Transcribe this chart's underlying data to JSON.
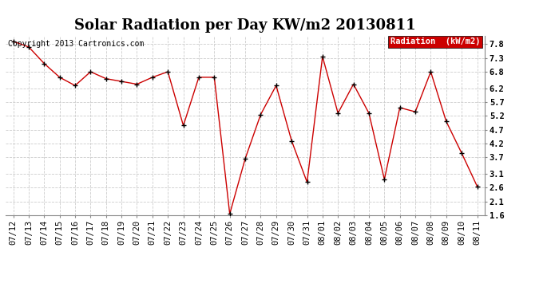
{
  "title": "Solar Radiation per Day KW/m2 20130811",
  "copyright": "Copyright 2013 Cartronics.com",
  "legend_label": "Radiation  (kW/m2)",
  "dates": [
    "07/12",
    "07/13",
    "07/14",
    "07/15",
    "07/16",
    "07/17",
    "07/18",
    "07/19",
    "07/20",
    "07/21",
    "07/22",
    "07/23",
    "07/24",
    "07/25",
    "07/26",
    "07/27",
    "07/28",
    "07/29",
    "07/30",
    "07/31",
    "08/01",
    "08/02",
    "08/03",
    "08/04",
    "08/05",
    "08/06",
    "08/07",
    "08/08",
    "08/09",
    "08/10",
    "08/11"
  ],
  "values": [
    7.9,
    7.7,
    7.1,
    6.6,
    6.3,
    6.8,
    6.55,
    6.45,
    6.35,
    6.6,
    6.8,
    4.85,
    6.6,
    6.6,
    1.65,
    3.65,
    5.25,
    6.3,
    4.3,
    2.8,
    7.35,
    5.3,
    6.35,
    5.3,
    2.9,
    5.5,
    5.35,
    6.8,
    5.0,
    3.85,
    2.65
  ],
  "line_color": "#cc0000",
  "marker_color": "#000000",
  "grid_color": "#cccccc",
  "bg_color": "#ffffff",
  "legend_bg": "#cc0000",
  "legend_text_color": "#ffffff",
  "ylim": [
    1.6,
    8.1
  ],
  "yticks": [
    1.6,
    2.1,
    2.6,
    3.1,
    3.7,
    4.2,
    4.7,
    5.2,
    5.7,
    6.2,
    6.8,
    7.3,
    7.8
  ],
  "title_fontsize": 13,
  "tick_fontsize": 7.5,
  "copyright_fontsize": 7
}
